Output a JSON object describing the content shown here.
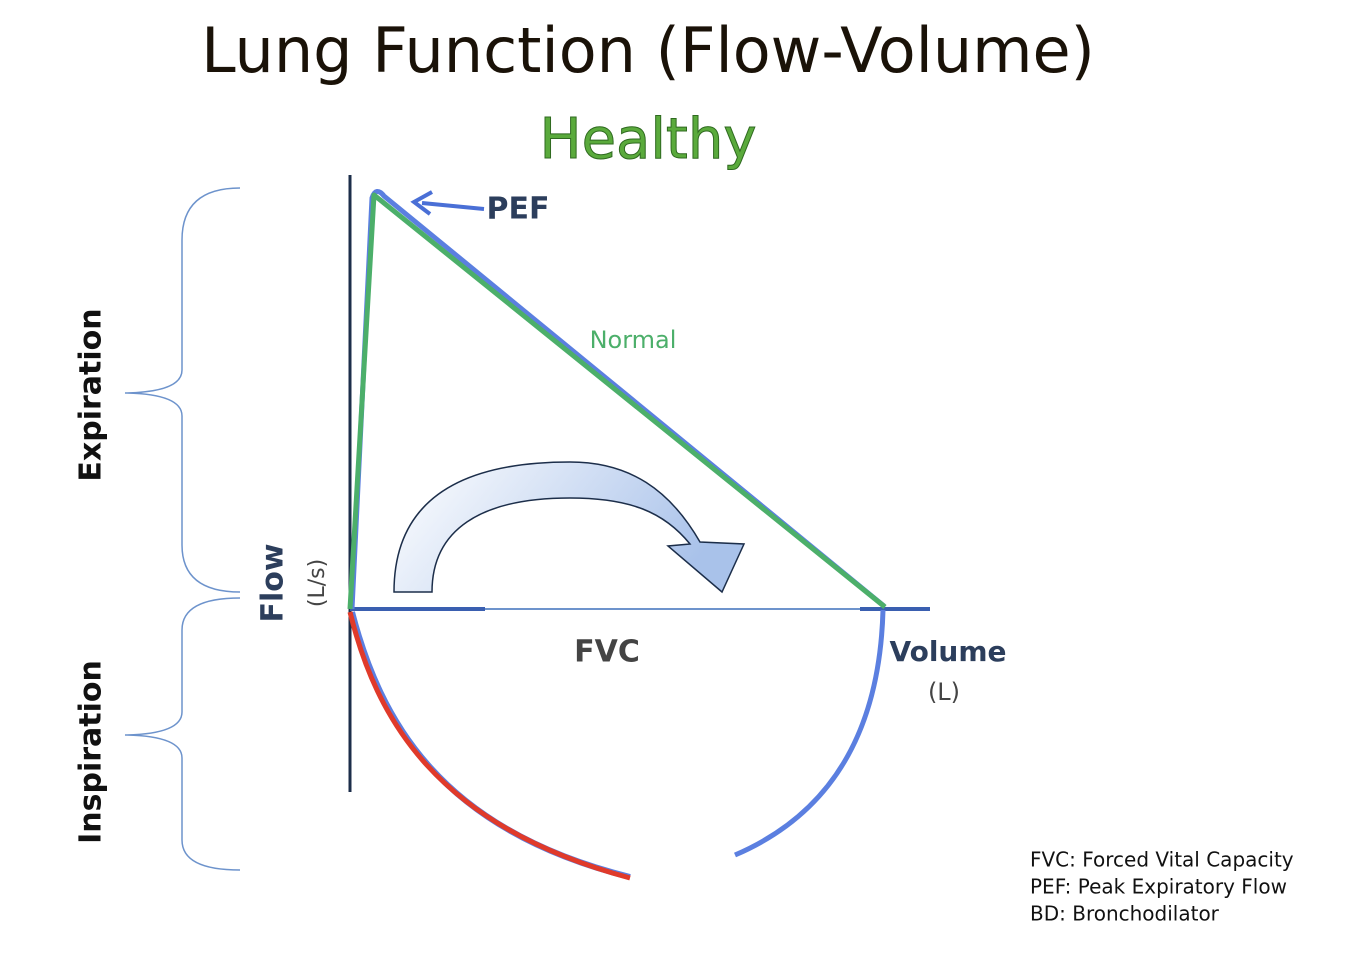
{
  "header": {
    "title": "Lung Function (Flow-Volume)",
    "subtitle": "Healthy"
  },
  "diagram": {
    "peak_label": "PEF",
    "curve_label": "Normal",
    "expiration_label": "Expiration",
    "inspiration_label": "Inspiration",
    "y_axis_label": "Flow",
    "y_axis_unit": "(L/s)",
    "x_axis_label": "Volume",
    "x_axis_unit": "(L)",
    "span_label": "FVC"
  },
  "legend": [
    "FVC: Forced Vital Capacity",
    "PEF: Peak Expiratory Flow",
    "BD: Bronchodilator"
  ]
}
